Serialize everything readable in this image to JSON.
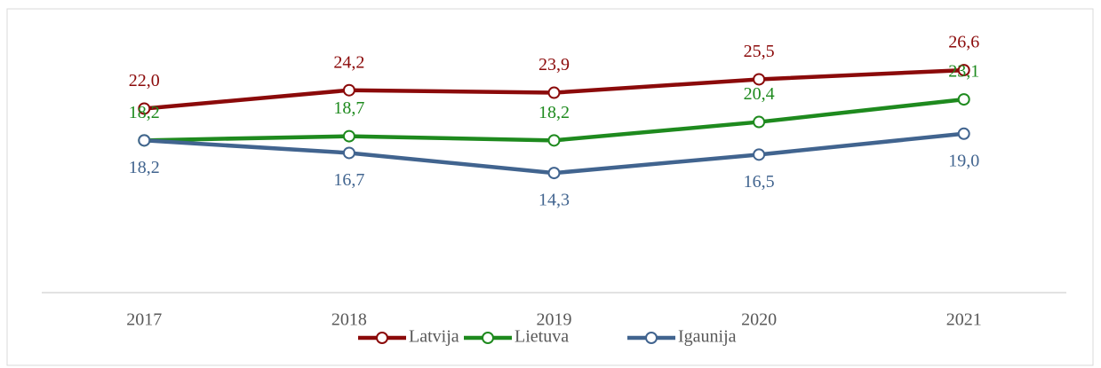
{
  "chart_data": {
    "type": "line",
    "categories": [
      "2017",
      "2018",
      "2019",
      "2020",
      "2021"
    ],
    "ylim": [
      0,
      30
    ],
    "series": [
      {
        "name": "Latvija",
        "color": "#8b0a0a",
        "values": [
          22.0,
          24.2,
          23.9,
          25.5,
          26.6
        ],
        "value_labels": [
          "22,0",
          "24,2",
          "23,9",
          "25,5",
          "26,6"
        ],
        "label_position": "above"
      },
      {
        "name": "Lietuva",
        "color": "#1e8a1e",
        "values": [
          18.2,
          18.7,
          18.2,
          20.4,
          23.1
        ],
        "value_labels": [
          "18,2",
          "18,7",
          "18,2",
          "20,4",
          "23,1"
        ],
        "label_position": "above"
      },
      {
        "name": "Igaunija",
        "color": "#41648f",
        "values": [
          18.2,
          16.7,
          14.3,
          16.5,
          19.0
        ],
        "value_labels": [
          "18,2",
          "16,7",
          "14,3",
          "16,5",
          "19,0"
        ],
        "label_position": "below"
      }
    ],
    "legend": "bottom"
  }
}
